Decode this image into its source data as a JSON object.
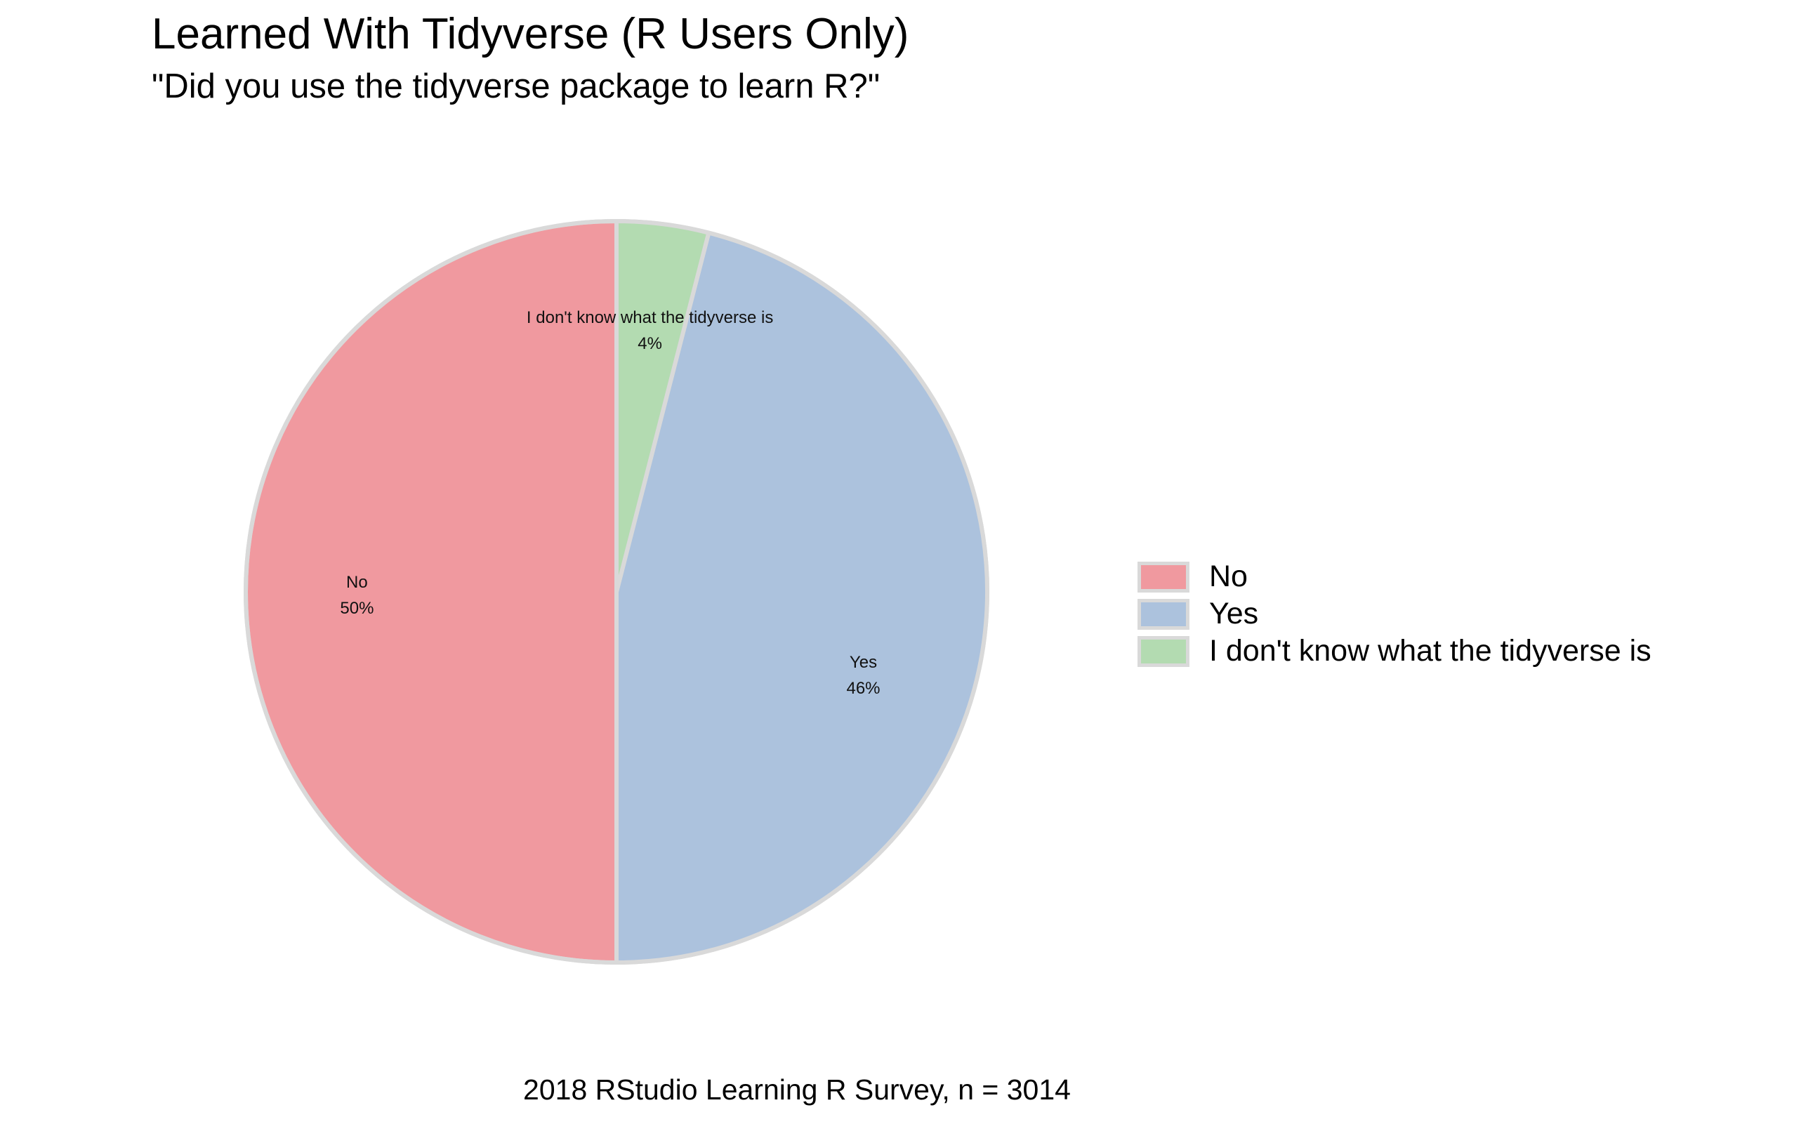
{
  "chart_data": {
    "type": "pie",
    "title": "Learned With Tidyverse (R Users Only)",
    "subtitle": "\"Did you use the tidyverse package to learn R?\"",
    "caption": "2018 RStudio Learning R Survey, n = 3014",
    "legend_position": "right",
    "slices": [
      {
        "label": "No",
        "value": 50,
        "value_label": "50%",
        "color": "#F0999F"
      },
      {
        "label": "Yes",
        "value": 46,
        "value_label": "46%",
        "color": "#ACC2DD"
      },
      {
        "label": "I don't know what the tidyverse is",
        "value": 4,
        "value_label": "4%",
        "color": "#B3DBB1"
      }
    ],
    "slice_border_color": "#d9d9d9"
  }
}
